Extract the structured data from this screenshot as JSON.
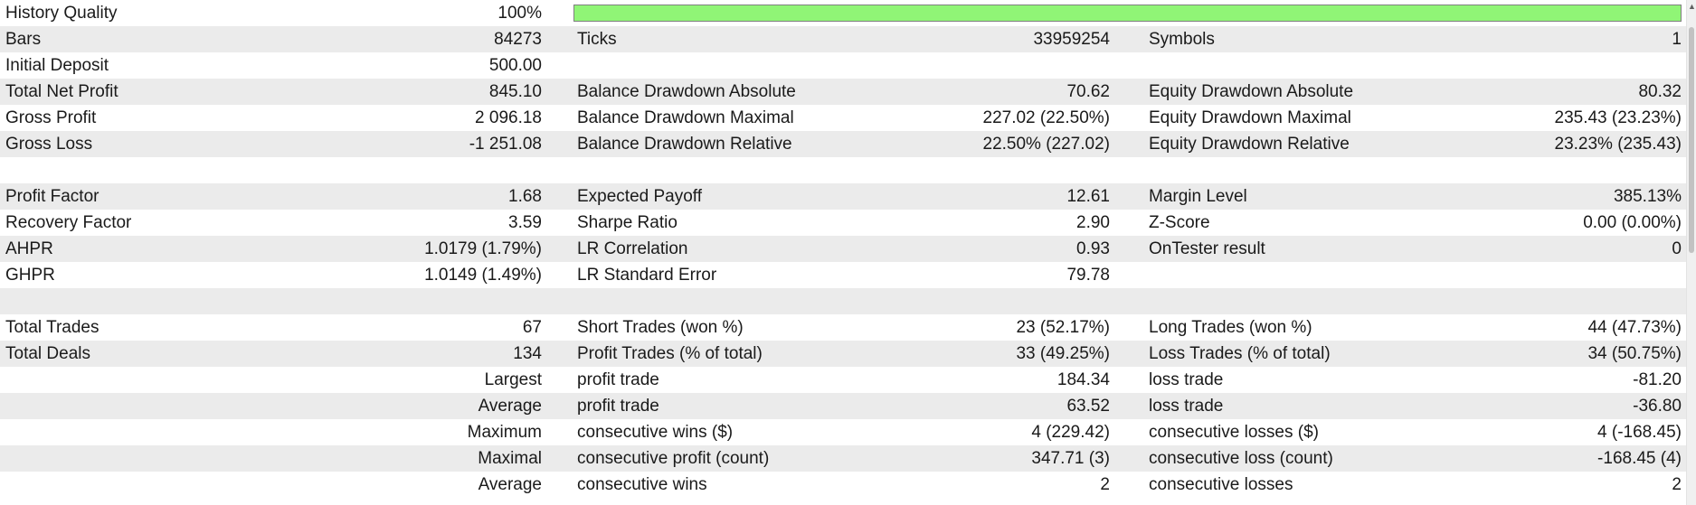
{
  "history_quality": {
    "label": "History Quality",
    "value": "100%",
    "fill_fraction": 1.0,
    "bar_color": "#90f576"
  },
  "r_bars": {
    "c1_label": "Bars",
    "c1_value": "84273",
    "c2_label": "Ticks",
    "c2_value": "33959254",
    "c3_label": "Symbols",
    "c3_value": "1"
  },
  "r_deposit": {
    "c1_label": "Initial Deposit",
    "c1_value": "500.00"
  },
  "r_net_profit": {
    "c1_label": "Total Net Profit",
    "c1_value": "845.10",
    "c2_label": "Balance Drawdown Absolute",
    "c2_value": "70.62",
    "c3_label": "Equity Drawdown Absolute",
    "c3_value": "80.32"
  },
  "r_gross_profit": {
    "c1_label": "Gross Profit",
    "c1_value": "2 096.18",
    "c2_label": "Balance Drawdown Maximal",
    "c2_value": "227.02 (22.50%)",
    "c3_label": "Equity Drawdown Maximal",
    "c3_value": "235.43 (23.23%)"
  },
  "r_gross_loss": {
    "c1_label": "Gross Loss",
    "c1_value": "-1 251.08",
    "c2_label": "Balance Drawdown Relative",
    "c2_value": "22.50% (227.02)",
    "c3_label": "Equity Drawdown Relative",
    "c3_value": "23.23% (235.43)"
  },
  "r_profit_factor": {
    "c1_label": "Profit Factor",
    "c1_value": "1.68",
    "c2_label": "Expected Payoff",
    "c2_value": "12.61",
    "c3_label": "Margin Level",
    "c3_value": "385.13%"
  },
  "r_recovery": {
    "c1_label": "Recovery Factor",
    "c1_value": "3.59",
    "c2_label": "Sharpe Ratio",
    "c2_value": "2.90",
    "c3_label": "Z-Score",
    "c3_value": "0.00 (0.00%)"
  },
  "r_ahpr": {
    "c1_label": "AHPR",
    "c1_value": "1.0179 (1.79%)",
    "c2_label": "LR Correlation",
    "c2_value": "0.93",
    "c3_label": "OnTester result",
    "c3_value": "0"
  },
  "r_ghpr": {
    "c1_label": "GHPR",
    "c1_value": "1.0149 (1.49%)",
    "c2_label": "LR Standard Error",
    "c2_value": "79.78"
  },
  "r_total_trades": {
    "c1_label": "Total Trades",
    "c1_value": "67",
    "c2_label": "Short Trades (won %)",
    "c2_value": "23 (52.17%)",
    "c3_label": "Long Trades (won %)",
    "c3_value": "44 (47.73%)"
  },
  "r_total_deals": {
    "c1_label": "Total Deals",
    "c1_value": "134",
    "c2_label": "Profit Trades (% of total)",
    "c2_value": "33 (49.25%)",
    "c3_label": "Loss Trades (% of total)",
    "c3_value": "34 (50.75%)"
  },
  "r_largest": {
    "c1_value": "Largest",
    "c2_label": "profit trade",
    "c2_value": "184.34",
    "c3_label": "loss trade",
    "c3_value": "-81.20"
  },
  "r_average": {
    "c1_value": "Average",
    "c2_label": "profit trade",
    "c2_value": "63.52",
    "c3_label": "loss trade",
    "c3_value": "-36.80"
  },
  "r_maximum": {
    "c1_value": "Maximum",
    "c2_label": "consecutive wins ($)",
    "c2_value": "4 (229.42)",
    "c3_label": "consecutive losses ($)",
    "c3_value": "4 (-168.45)"
  },
  "r_maximal": {
    "c1_value": "Maximal",
    "c2_label": "consecutive profit (count)",
    "c2_value": "347.71 (3)",
    "c3_label": "consecutive loss (count)",
    "c3_value": "-168.45 (4)"
  },
  "r_average2": {
    "c1_value": "Average",
    "c2_label": "consecutive wins",
    "c2_value": "2",
    "c3_label": "consecutive losses",
    "c3_value": "2"
  },
  "scrollbar": {
    "up_arrow_icon": "chevron-up-icon"
  }
}
